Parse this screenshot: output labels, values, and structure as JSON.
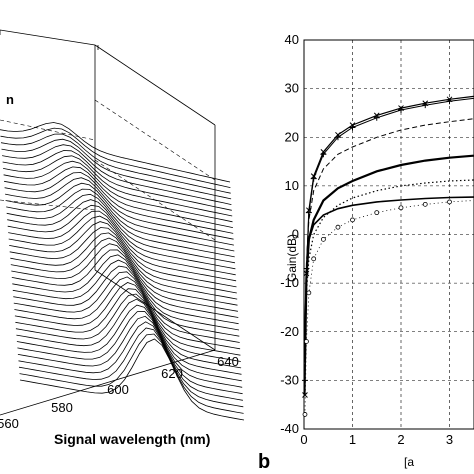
{
  "figure_labels": {
    "panel_b": "b"
  },
  "chart_data": [
    {
      "type": "surface",
      "panel": "a",
      "xlabel": "Signal wavelength (nm)",
      "x_ticks": [
        "560",
        "580",
        "600",
        "620",
        "640"
      ],
      "partial_label": "n",
      "n_curves": 40,
      "grid": true
    },
    {
      "type": "line",
      "panel": "b",
      "ylabel": "Gain(dB)",
      "xlabel_fragment": "[a",
      "y_ticks": [
        "40",
        "30",
        "20",
        "10",
        "0",
        "-10",
        "-20",
        "-30",
        "-40"
      ],
      "x_ticks": [
        "0",
        "1",
        "2",
        "3"
      ],
      "ylim": [
        -40,
        40
      ],
      "xlim": [
        0,
        3.5
      ],
      "grid": true,
      "series": [
        {
          "style": "x-markers",
          "x": [
            0.02,
            0.05,
            0.1,
            0.2,
            0.4,
            0.7,
            1,
            1.5,
            2,
            2.5,
            3,
            3.5
          ],
          "y": [
            -33,
            -8,
            5,
            12,
            17,
            20.5,
            22.5,
            24.5,
            26,
            27,
            27.8,
            28.4
          ]
        },
        {
          "style": "plus-markers",
          "x": [
            0.02,
            0.05,
            0.1,
            0.2,
            0.4,
            0.7,
            1,
            1.5,
            2,
            2.5,
            3,
            3.5
          ],
          "y": [
            -30,
            -7,
            4.5,
            11.5,
            16.5,
            20,
            22,
            24,
            25.6,
            26.6,
            27.4,
            28
          ]
        },
        {
          "style": "dashed",
          "x": [
            0.02,
            0.05,
            0.1,
            0.2,
            0.4,
            0.7,
            1,
            1.5,
            2,
            2.5,
            3,
            3.5
          ],
          "y": [
            -28,
            -6,
            3,
            9,
            13.5,
            16.5,
            18,
            20,
            21.5,
            22.5,
            23.2,
            23.8
          ]
        },
        {
          "style": "thick-solid",
          "x": [
            0.02,
            0.05,
            0.1,
            0.2,
            0.4,
            0.7,
            1,
            1.5,
            2,
            2.5,
            3,
            3.5
          ],
          "y": [
            -26,
            -9,
            -1,
            3,
            7,
            9.5,
            11,
            13,
            14.3,
            15.2,
            15.8,
            16.2
          ]
        },
        {
          "style": "dotted",
          "x": [
            0.02,
            0.05,
            0.1,
            0.2,
            0.4,
            0.7,
            1,
            1.5,
            2,
            2.5,
            3,
            3.5
          ],
          "y": [
            -27,
            -12,
            -5,
            0,
            3.5,
            6,
            7.5,
            9,
            10,
            10.6,
            11,
            11.2
          ]
        },
        {
          "style": "solid-thin",
          "x": [
            0.02,
            0.05,
            0.1,
            0.2,
            0.4,
            0.7,
            1,
            1.5,
            2,
            2.5,
            3,
            3.5
          ],
          "y": [
            -22,
            -8,
            -1,
            2,
            4,
            5.3,
            6,
            6.7,
            7.1,
            7.4,
            7.6,
            7.7
          ]
        },
        {
          "style": "circle-markers",
          "x": [
            0.02,
            0.05,
            0.1,
            0.2,
            0.4,
            0.7,
            1,
            1.5,
            2,
            2.5,
            3,
            3.5
          ],
          "y": [
            -37,
            -22,
            -12,
            -5,
            -1,
            1.5,
            3,
            4.5,
            5.5,
            6.2,
            6.7,
            7
          ]
        }
      ]
    }
  ]
}
